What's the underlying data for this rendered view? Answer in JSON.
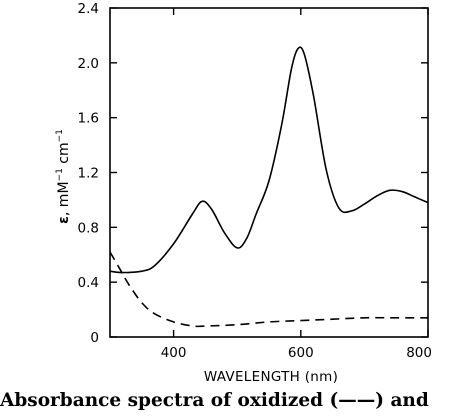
{
  "chart_data": {
    "type": "line",
    "title": "",
    "xlabel": "WAVELENGTH (nm)",
    "ylabel": "ε, mM⁻¹ cm⁻¹",
    "ylabel_parts": {
      "epsilon": "ε",
      "units_a": ", mM",
      "exp_a": "−1",
      "units_b": " cm",
      "exp_b": "−1"
    },
    "xlim": [
      300,
      800
    ],
    "ylim": [
      0,
      2.4
    ],
    "x_ticks": [
      400,
      600,
      800
    ],
    "x_tick_labels": [
      "400",
      "600",
      "800"
    ],
    "y_ticks": [
      0,
      0.4,
      0.8,
      1.2,
      1.6,
      2.0,
      2.4
    ],
    "y_tick_labels": [
      "0",
      "0.4",
      "0.8",
      "1.2",
      "1.6",
      "2.0",
      "2.4"
    ],
    "grid": false,
    "legend": "none",
    "series": [
      {
        "style": "solid",
        "color": "#000000",
        "x": [
          300,
          320,
          350,
          370,
          400,
          430,
          445,
          460,
          480,
          500,
          515,
          530,
          550,
          570,
          585,
          595,
          605,
          620,
          640,
          660,
          680,
          700,
          720,
          740,
          760,
          780,
          800
        ],
        "y": [
          0.48,
          0.47,
          0.48,
          0.52,
          0.68,
          0.9,
          0.99,
          0.93,
          0.76,
          0.65,
          0.72,
          0.9,
          1.14,
          1.55,
          1.95,
          2.1,
          2.07,
          1.76,
          1.22,
          0.94,
          0.92,
          0.97,
          1.03,
          1.07,
          1.06,
          1.02,
          0.98
        ]
      },
      {
        "style": "dashed",
        "color": "#000000",
        "x": [
          300,
          315,
          330,
          350,
          370,
          400,
          430,
          450,
          500,
          550,
          600,
          650,
          700,
          750,
          800
        ],
        "y": [
          0.62,
          0.5,
          0.38,
          0.25,
          0.17,
          0.11,
          0.08,
          0.08,
          0.09,
          0.11,
          0.12,
          0.13,
          0.14,
          0.14,
          0.14
        ]
      }
    ]
  },
  "caption": {
    "text": "Absorbance spectra of oxidized (——) and"
  }
}
